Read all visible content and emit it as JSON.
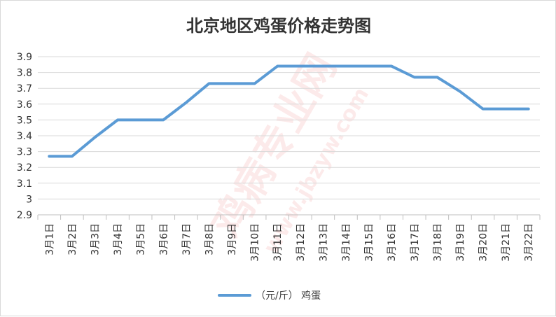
{
  "chart_data": {
    "type": "line",
    "title": "北京地区鸡蛋价格走势图",
    "categories": [
      "3月1日",
      "3月2日",
      "3月3日",
      "3月4日",
      "3月5日",
      "3月6日",
      "3月7日",
      "3月8日",
      "3月9日",
      "3月10日",
      "3月11日",
      "3月12日",
      "3月13日",
      "3月14日",
      "3月15日",
      "3月16日",
      "3月17日",
      "3月18日",
      "3月19日",
      "3月20日",
      "3月21日",
      "3月22日"
    ],
    "series": [
      {
        "name": "（元/斤） 鸡蛋",
        "color": "#5b9bd5",
        "values": [
          3.27,
          3.27,
          3.39,
          3.5,
          3.5,
          3.5,
          3.61,
          3.73,
          3.73,
          3.73,
          3.84,
          3.84,
          3.84,
          3.84,
          3.84,
          3.84,
          3.77,
          3.77,
          3.68,
          3.57,
          3.57,
          3.57
        ]
      }
    ],
    "yticks": [
      "2.9",
      "3",
      "3.1",
      "3.2",
      "3.3",
      "3.4",
      "3.5",
      "3.6",
      "3.7",
      "3.8",
      "3.9"
    ],
    "ylim": [
      2.9,
      3.9
    ],
    "xlabel": "",
    "ylabel": "",
    "grid": true,
    "legend_position": "bottom"
  },
  "watermark": {
    "text_main": "鸡病专业网",
    "text_url": "www.jbzyw.com"
  }
}
